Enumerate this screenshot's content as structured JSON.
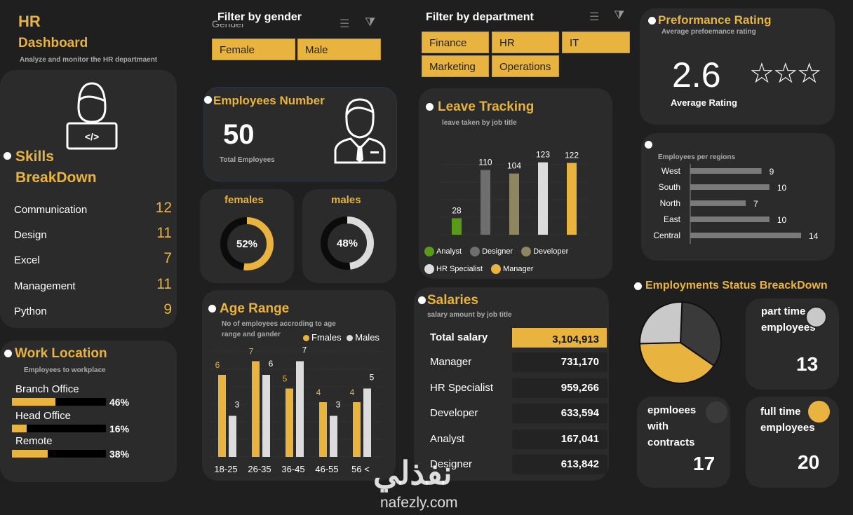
{
  "header": {
    "title": "HR",
    "subtitle": "Dashboard",
    "tagline": "Analyze and  monitor the HR departmaent"
  },
  "gender_filter": {
    "title": "Filter by gender",
    "ghost_label": "Gender",
    "options": [
      "Female",
      "Male"
    ]
  },
  "dept_filter": {
    "title": "Filter by department",
    "options": [
      "Finance",
      "HR",
      "IT",
      "Marketing",
      "Operations"
    ]
  },
  "employees": {
    "title": "Employees Number",
    "value": "50",
    "label": "Total Employees"
  },
  "gender_split": {
    "females": {
      "label": "females",
      "percent": 52,
      "text": "52%"
    },
    "males": {
      "label": "males",
      "percent": 48,
      "text": "48%"
    }
  },
  "skills": {
    "title1": "Skills",
    "title2": "BreakDown",
    "items": [
      {
        "name": "Communication",
        "value": "12"
      },
      {
        "name": "Design",
        "value": "11"
      },
      {
        "name": "Excel",
        "value": "7"
      },
      {
        "name": "Management",
        "value": "11"
      },
      {
        "name": "Python",
        "value": "9"
      }
    ]
  },
  "work_location": {
    "title": "Work Location",
    "subtitle": "Employees to workplace",
    "items": [
      {
        "name": "Branch Office",
        "percent": 46,
        "text": "46%"
      },
      {
        "name": "Head Office",
        "percent": 16,
        "text": "16%"
      },
      {
        "name": "Remote",
        "percent": 38,
        "text": "38%"
      }
    ]
  },
  "performance": {
    "title": "Preformance Rating",
    "subtitle": "Average prefoemance rating",
    "value": "2.6",
    "label": "Average Rating",
    "stars": 3
  },
  "salaries": {
    "title": "Salaries",
    "subtitle": "salary amount by job title",
    "total_label": "Total salary",
    "total_value": "3,104,913",
    "rows": [
      {
        "name": "Manager",
        "value": "731,170"
      },
      {
        "name": "HR Specialist",
        "value": "959,266"
      },
      {
        "name": "Developer",
        "value": "633,594"
      },
      {
        "name": "Analyst",
        "value": "167,041"
      },
      {
        "name": "Designer",
        "value": "613,842"
      }
    ]
  },
  "status": {
    "title": "Employments Status BreackDown",
    "cards": [
      {
        "label": "part time employees",
        "value": "13",
        "color": "#c9c9c9"
      },
      {
        "label": "epmloees with contracts",
        "value": "17",
        "color": "#3a3a3a"
      },
      {
        "label": "full time employees",
        "value": "20",
        "color": "#e8b33f"
      }
    ]
  },
  "watermark": {
    "arabic": "نفذلي",
    "latin": "nafezly.com"
  },
  "chart_data": [
    {
      "type": "bar",
      "title": "Leave Tracking",
      "subtitle": "leave taken by job title",
      "categories": [
        "Analyst",
        "Designer",
        "Developer",
        "HR Specialist",
        "Manager"
      ],
      "values": [
        28,
        110,
        104,
        123,
        122
      ],
      "colors": [
        "#5a9a1a",
        "#6e6e6e",
        "#8e8660",
        "#dcdcdc",
        "#e8b33f"
      ],
      "legend": "bottom"
    },
    {
      "type": "bar",
      "title": "Age Range",
      "subtitle": "No of employees accroding to age range and gander",
      "categories": [
        "18-25",
        "26-35",
        "36-45",
        "46-55",
        "56 <"
      ],
      "series": [
        {
          "name": "Fmales",
          "values": [
            6,
            7,
            5,
            4,
            4
          ],
          "color": "#e8b33f"
        },
        {
          "name": "Males",
          "values": [
            3,
            6,
            7,
            3,
            5
          ],
          "color": "#dcdcdc"
        }
      ],
      "ylim": [
        0,
        8
      ],
      "legend": "top-right"
    },
    {
      "type": "bar",
      "orientation": "horizontal",
      "subtitle": "Employees per regions",
      "categories": [
        "West",
        "South",
        "North",
        "East",
        "Central"
      ],
      "values": [
        9,
        10,
        7,
        10,
        14
      ],
      "color": "#7a7a7a"
    },
    {
      "type": "pie",
      "title": "Employments Status BreackDown",
      "categories": [
        "part time employees",
        "epmloees with contracts",
        "full time employees"
      ],
      "values": [
        13,
        17,
        20
      ],
      "colors": [
        "#c9c9c9",
        "#3a3a3a",
        "#e8b33f"
      ]
    }
  ]
}
